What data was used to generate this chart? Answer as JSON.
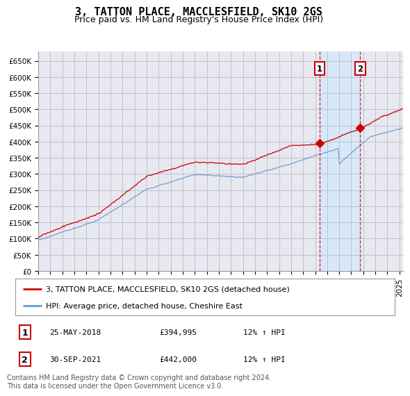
{
  "title": "3, TATTON PLACE, MACCLESFIELD, SK10 2GS",
  "subtitle": "Price paid vs. HM Land Registry's House Price Index (HPI)",
  "ylabel_ticks": [
    "£0",
    "£50K",
    "£100K",
    "£150K",
    "£200K",
    "£250K",
    "£300K",
    "£350K",
    "£400K",
    "£450K",
    "£500K",
    "£550K",
    "£600K",
    "£650K"
  ],
  "ytick_values": [
    0,
    50000,
    100000,
    150000,
    200000,
    250000,
    300000,
    350000,
    400000,
    450000,
    500000,
    550000,
    600000,
    650000
  ],
  "ylim": [
    0,
    680000
  ],
  "xlim_start": 1995.0,
  "xlim_end": 2025.3,
  "transaction1_x": 2018.38,
  "transaction1_y": 394995,
  "transaction2_x": 2021.75,
  "transaction2_y": 442000,
  "transaction1_date": "25-MAY-2018",
  "transaction1_price": "£394,995",
  "transaction1_hpi": "12% ↑ HPI",
  "transaction2_date": "30-SEP-2021",
  "transaction2_price": "£442,000",
  "transaction2_hpi": "12% ↑ HPI",
  "legend_line1": "3, TATTON PLACE, MACCLESFIELD, SK10 2GS (detached house)",
  "legend_line2": "HPI: Average price, detached house, Cheshire East",
  "footer": "Contains HM Land Registry data © Crown copyright and database right 2024.\nThis data is licensed under the Open Government Licence v3.0.",
  "red_color": "#cc0000",
  "blue_color": "#6699cc",
  "bg_color": "#e8e8f0",
  "highlight_color": "#d8e8f8",
  "grid_color": "#bbbbcc",
  "title_fontsize": 11,
  "subtitle_fontsize": 9,
  "tick_fontsize": 7.5,
  "legend_fontsize": 8,
  "footer_fontsize": 7
}
